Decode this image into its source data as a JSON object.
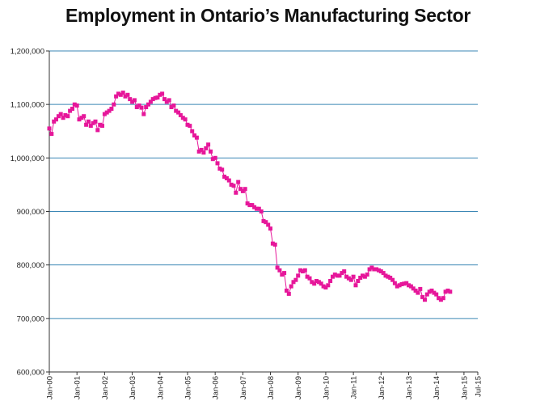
{
  "chart_data": {
    "type": "line",
    "title": "Employment in Ontario’s Manufacturing Sector",
    "xlabel": "",
    "ylabel": "",
    "ylim": [
      600000,
      1200000
    ],
    "yticks": [
      600000,
      700000,
      800000,
      900000,
      1000000,
      1100000,
      1200000
    ],
    "ytick_labels": [
      "600,000",
      "700,000",
      "800,000",
      "900,000",
      "1,000,000",
      "1,100,000",
      "1,200,000"
    ],
    "x_start": "Jan-00",
    "x_end": "Jul-15",
    "xtick_labels": [
      "Jan-00",
      "Jan-01",
      "Jan-02",
      "Jan-03",
      "Jan-04",
      "Jan-05",
      "Jan-06",
      "Jan-07",
      "Jan-08",
      "Jan-09",
      "Jan-10",
      "Jan-11",
      "Jan-12",
      "Jan-13",
      "Jan-14",
      "Jan-15",
      "Jul-15"
    ],
    "xtick_months": [
      0,
      12,
      24,
      36,
      48,
      60,
      72,
      84,
      96,
      108,
      120,
      132,
      144,
      156,
      168,
      180,
      186
    ],
    "grid": true,
    "series": [
      {
        "name": "Employment",
        "color": "#e6179a",
        "marker": "square",
        "values": [
          1055000,
          1045000,
          1068000,
          1072000,
          1078000,
          1082000,
          1075000,
          1080000,
          1078000,
          1088000,
          1092000,
          1100000,
          1098000,
          1072000,
          1075000,
          1078000,
          1062000,
          1068000,
          1060000,
          1065000,
          1068000,
          1052000,
          1062000,
          1060000,
          1082000,
          1085000,
          1088000,
          1092000,
          1100000,
          1115000,
          1120000,
          1118000,
          1122000,
          1115000,
          1118000,
          1110000,
          1105000,
          1108000,
          1095000,
          1098000,
          1094000,
          1082000,
          1095000,
          1100000,
          1105000,
          1110000,
          1112000,
          1113000,
          1118000,
          1120000,
          1110000,
          1105000,
          1108000,
          1095000,
          1098000,
          1088000,
          1085000,
          1080000,
          1075000,
          1072000,
          1062000,
          1060000,
          1050000,
          1042000,
          1038000,
          1012000,
          1015000,
          1010000,
          1018000,
          1025000,
          1012000,
          998000,
          1000000,
          990000,
          980000,
          978000,
          965000,
          962000,
          958000,
          950000,
          948000,
          935000,
          955000,
          942000,
          938000,
          942000,
          915000,
          912000,
          912000,
          908000,
          905000,
          905000,
          900000,
          882000,
          880000,
          875000,
          868000,
          840000,
          838000,
          795000,
          790000,
          782000,
          785000,
          752000,
          746000,
          760000,
          768000,
          772000,
          780000,
          790000,
          788000,
          790000,
          778000,
          775000,
          768000,
          765000,
          770000,
          768000,
          765000,
          760000,
          758000,
          762000,
          770000,
          778000,
          782000,
          780000,
          780000,
          785000,
          788000,
          778000,
          775000,
          772000,
          778000,
          762000,
          770000,
          776000,
          780000,
          778000,
          782000,
          792000,
          795000,
          792000,
          792000,
          790000,
          788000,
          785000,
          780000,
          778000,
          776000,
          772000,
          766000,
          760000,
          762000,
          764000,
          765000,
          766000,
          762000,
          760000,
          756000,
          752000,
          748000,
          755000,
          740000,
          735000,
          745000,
          750000,
          752000,
          748000,
          745000,
          738000,
          735000,
          738000,
          750000,
          752000,
          750000
        ]
      }
    ]
  }
}
